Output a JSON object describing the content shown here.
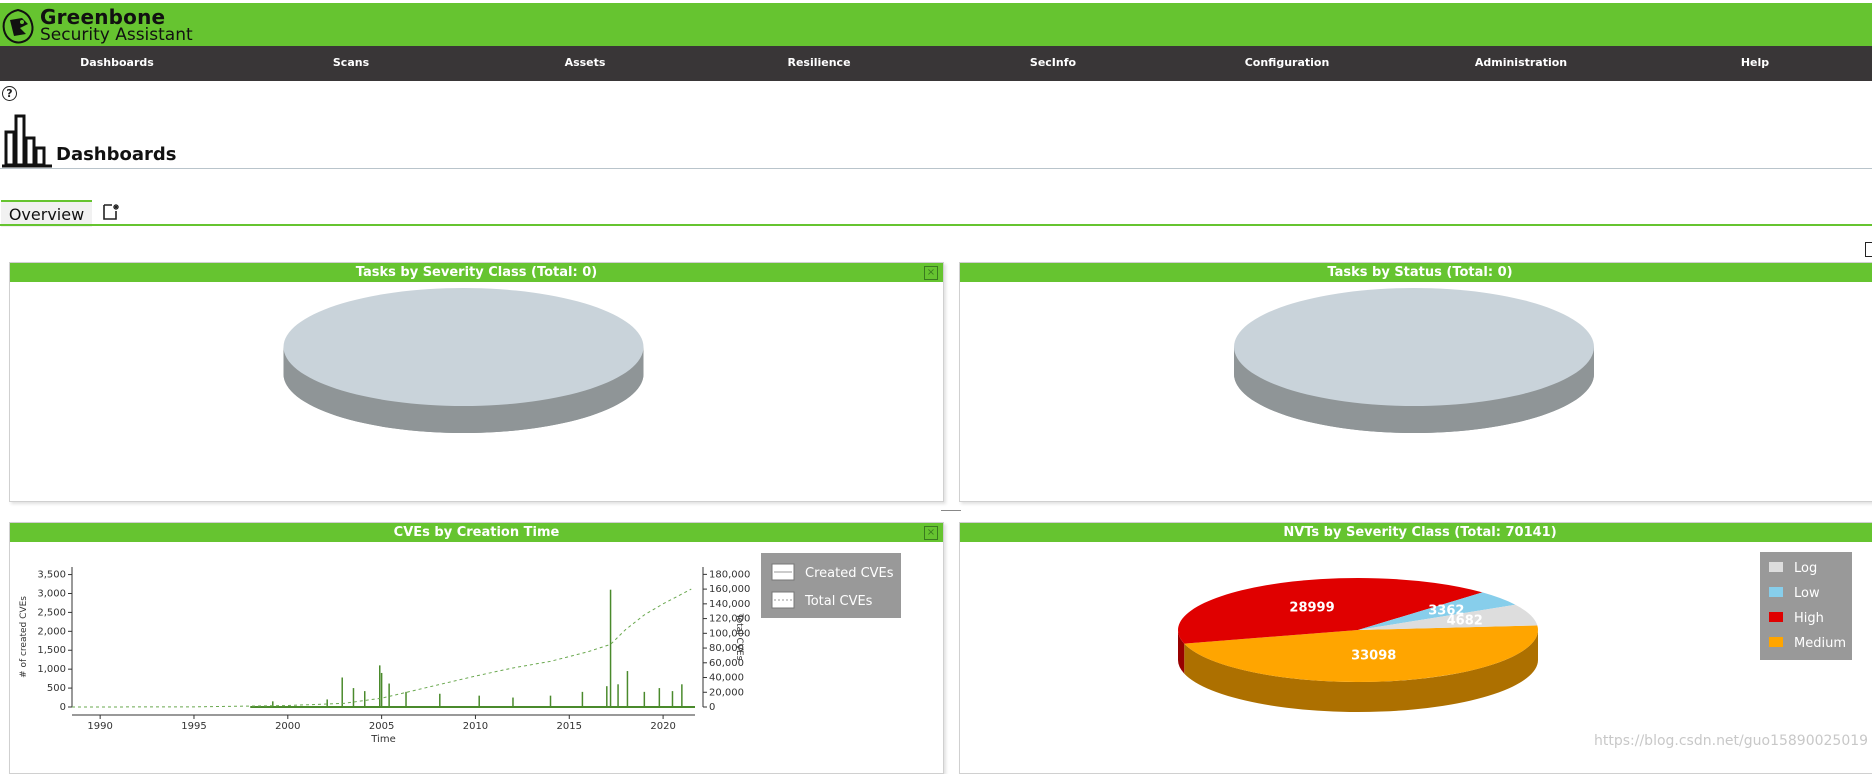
{
  "app": {
    "brand_line1": "Greenbone",
    "brand_line2": "Security Assistant"
  },
  "nav": [
    "Dashboards",
    "Scans",
    "Assets",
    "Resilience",
    "SecInfo",
    "Configuration",
    "Administration",
    "Help"
  ],
  "page": {
    "title": "Dashboards",
    "help_symbol": "?"
  },
  "tabs": {
    "overview": "Overview"
  },
  "panels": {
    "tasks_severity": {
      "title": "Tasks by Severity Class (Total: 0)",
      "close": "×"
    },
    "tasks_status": {
      "title": "Tasks by Status (Total: 0)"
    },
    "cves_time": {
      "title": "CVEs by Creation Time",
      "close": "×"
    },
    "nvts_severity": {
      "title": "NVTs by Severity Class (Total: 70141)"
    }
  },
  "colors": {
    "brand_green": "#66c430",
    "nav_bg": "#393637",
    "empty_pie_top": "#c9d3da",
    "empty_pie_side": "#8f9597"
  },
  "chart_data": [
    {
      "type": "line",
      "title": "",
      "xlabel": "Time",
      "ylabel": "# of created CVEs",
      "y2label": "Total CVEs",
      "xlim": [
        1988.5,
        2021.7
      ],
      "ylim": [
        0,
        3700
      ],
      "y2lim": [
        0,
        190000
      ],
      "x_ticks": [
        1990,
        1995,
        2000,
        2005,
        2010,
        2015,
        2020
      ],
      "y_ticks": [
        0,
        500,
        1000,
        1500,
        2000,
        2500,
        3000,
        3500
      ],
      "y2_ticks": [
        0,
        20000,
        40000,
        60000,
        80000,
        100000,
        120000,
        140000,
        160000,
        180000
      ],
      "legend": {
        "placement": "top-right",
        "entries": [
          "Created CVEs",
          "Total CVEs"
        ]
      },
      "series": [
        {
          "name": "Created CVEs",
          "color": "#4a8a2c",
          "x": [
            1999.2,
            2002.1,
            2002.9,
            2003.5,
            2004.1,
            2004.9,
            2005.0,
            2005.4,
            2006.3,
            2008.1,
            2010.2,
            2012.0,
            2014.0,
            2015.7,
            2017.0,
            2017.2,
            2017.6,
            2018.1,
            2019.0,
            2019.8,
            2020.5,
            2021.0
          ],
          "y": [
            150,
            200,
            780,
            500,
            420,
            1100,
            900,
            620,
            400,
            350,
            300,
            250,
            300,
            400,
            550,
            3100,
            600,
            950,
            400,
            500,
            420,
            600
          ]
        },
        {
          "name": "Total CVEs",
          "color": "#6aa84f",
          "dashed": true,
          "x": [
            1988.5,
            1995,
            2000,
            2003,
            2005,
            2006,
            2008,
            2010,
            2012,
            2014,
            2016,
            2017.2,
            2018,
            2019,
            2020,
            2021.5
          ],
          "y": [
            0,
            200,
            2000,
            5000,
            12000,
            18000,
            30000,
            42000,
            53000,
            62000,
            75000,
            85000,
            105000,
            125000,
            140000,
            160000
          ]
        }
      ]
    },
    {
      "type": "pie",
      "title": "NVTs by Severity Class (Total: 70141)",
      "legend": {
        "placement": "top-right"
      },
      "slices": [
        {
          "label": "Medium",
          "value": 33098,
          "color": "#ffa500"
        },
        {
          "label": "High",
          "value": 28999,
          "color": "#e00000"
        },
        {
          "label": "Low",
          "value": 3362,
          "color": "#87ceeb"
        },
        {
          "label": "Log",
          "value": 4682,
          "color": "#dddddd"
        }
      ],
      "legend_order": [
        "Log",
        "Low",
        "High",
        "Medium"
      ]
    }
  ],
  "watermark": "https://blog.csdn.net/guo15890025019"
}
